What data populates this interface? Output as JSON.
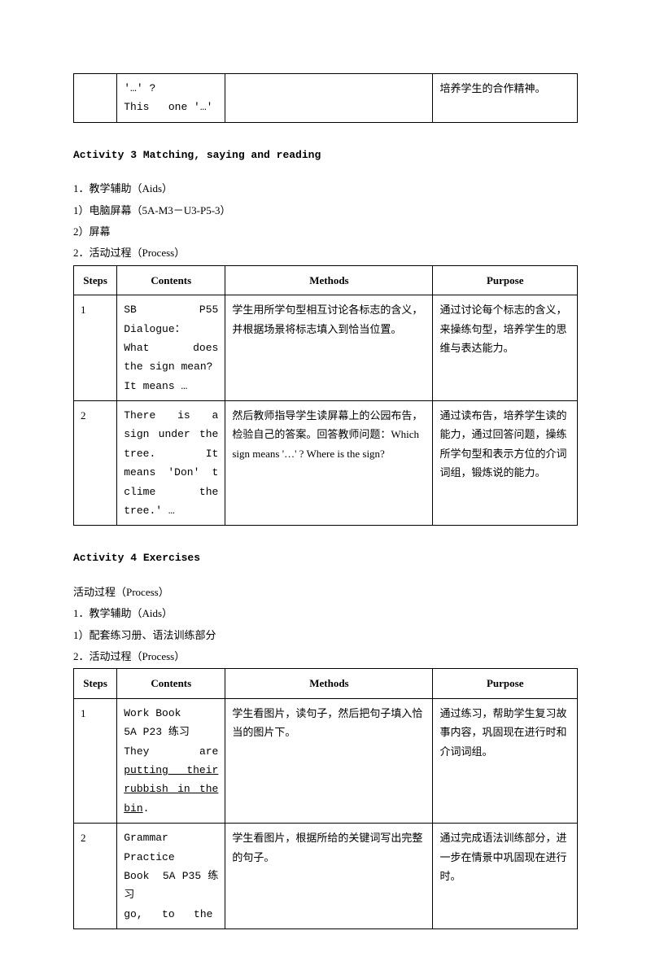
{
  "topTable": {
    "cell1": "",
    "cell2": "'…' ?\nThis   one '…'",
    "cell3": "",
    "cell4": "培养学生的合作精神。"
  },
  "activity3": {
    "title": "Activity 3  Matching, saying and reading",
    "aidsTitle": "1．教学辅助（Aids）",
    "aid1": "1）电脑屏幕（5A-M3－U3-P5-3）",
    "aid2": "2）屏幕",
    "processTitle": "2．活动过程（Process）",
    "headers": {
      "steps": "Steps",
      "contents": "Contents",
      "methods": "Methods",
      "purpose": "Purpose"
    },
    "rows": [
      {
        "step": "1",
        "contents": "SB      P55 Dialogue：\nWhat  does  the sign mean?\nIt means …",
        "methods": "学生用所学句型相互讨论各标志的含义，并根据场景将标志填入到恰当位置。",
        "purpose": "通过讨论每个标志的含义，来操练句型，培养学生的思维与表达能力。"
      },
      {
        "step": "2",
        "contents": "There is a sign under the tree. It      means 'Don' t  clime the tree.' …",
        "methods": "然后教师指导学生读屏幕上的公园布告，检验自己的答案。回答教师问题：Which sign means  '…' ? Where is the sign?",
        "purpose": "通过读布告，培养学生读的能力，通过回答问题，操练所学句型和表示方位的介词词组，锻炼说的能力。"
      }
    ]
  },
  "activity4": {
    "title": "Activity 4  Exercises",
    "processLine": "活动过程（Process）",
    "aidsTitle": "1．教学辅助（Aids）",
    "aid1": "1）配套练习册、语法训练部分",
    "processTitle": "2．活动过程（Process）",
    "headers": {
      "steps": "Steps",
      "contents": "Contents",
      "methods": "Methods",
      "purpose": "Purpose"
    },
    "rows": [
      {
        "step": "1",
        "contentsPlain": "Work Book\n5A P23 练习\nThey       are ",
        "contentsUnderlined": "putting   their rubbish  in  the bin",
        "contentsAfter": ".",
        "methods": "学生看图片，读句子，然后把句子填入恰当的图片下。",
        "purpose": "通过练习，帮助学生复习故事内容，巩固现在进行时和介词词组。"
      },
      {
        "step": "2",
        "contentsPlain": "Grammar Practice    Book  5A P35 练习\ngo,   to   the",
        "contentsUnderlined": "",
        "contentsAfter": "",
        "methods": "学生看图片，根据所给的关键词写出完整的句子。",
        "purpose": "通过完成语法训练部分，进一步在情景中巩固现在进行时。"
      }
    ]
  }
}
